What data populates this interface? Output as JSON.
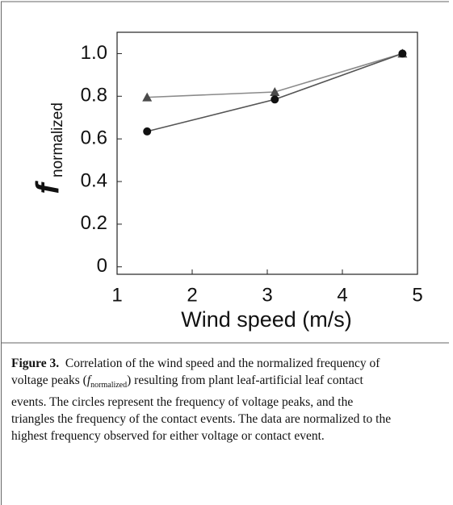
{
  "chart_data": {
    "type": "line",
    "ylabel": {
      "symbol": "f",
      "subscript": "normalized"
    },
    "xlabel": "Wind speed (m/s)",
    "xlim": [
      1,
      5
    ],
    "xticks": [
      1,
      2,
      3,
      4,
      5
    ],
    "ylim": [
      -0.035,
      1.1
    ],
    "yticks": [
      0,
      0.2,
      0.4,
      0.6,
      0.8,
      {
        "value": 1,
        "label": "1.0"
      }
    ],
    "series": [
      {
        "marker": "triangle",
        "color": "#4a4a4a",
        "line_color": "#8a8a8a",
        "x": [
          1.4,
          3.1,
          4.8
        ],
        "values": [
          0.795,
          0.82,
          1.0
        ]
      },
      {
        "marker": "circle",
        "color": "#111111",
        "line_color": "#555555",
        "x": [
          1.4,
          3.1,
          4.8
        ],
        "values": [
          0.635,
          0.785,
          1.0
        ]
      }
    ]
  },
  "caption": {
    "label": "Figure 3.",
    "text_before": "Correlation of the wind speed and the normalized frequency of voltage peaks (",
    "symbol": "f",
    "subscript": "normalized",
    "text_after": ") resulting from plant leaf-artificial leaf contact events. The circles represent the frequency of voltage peaks, and the triangles the frequency of the contact events. The data are normalized to the highest frequency observed for either voltage or contact event."
  }
}
